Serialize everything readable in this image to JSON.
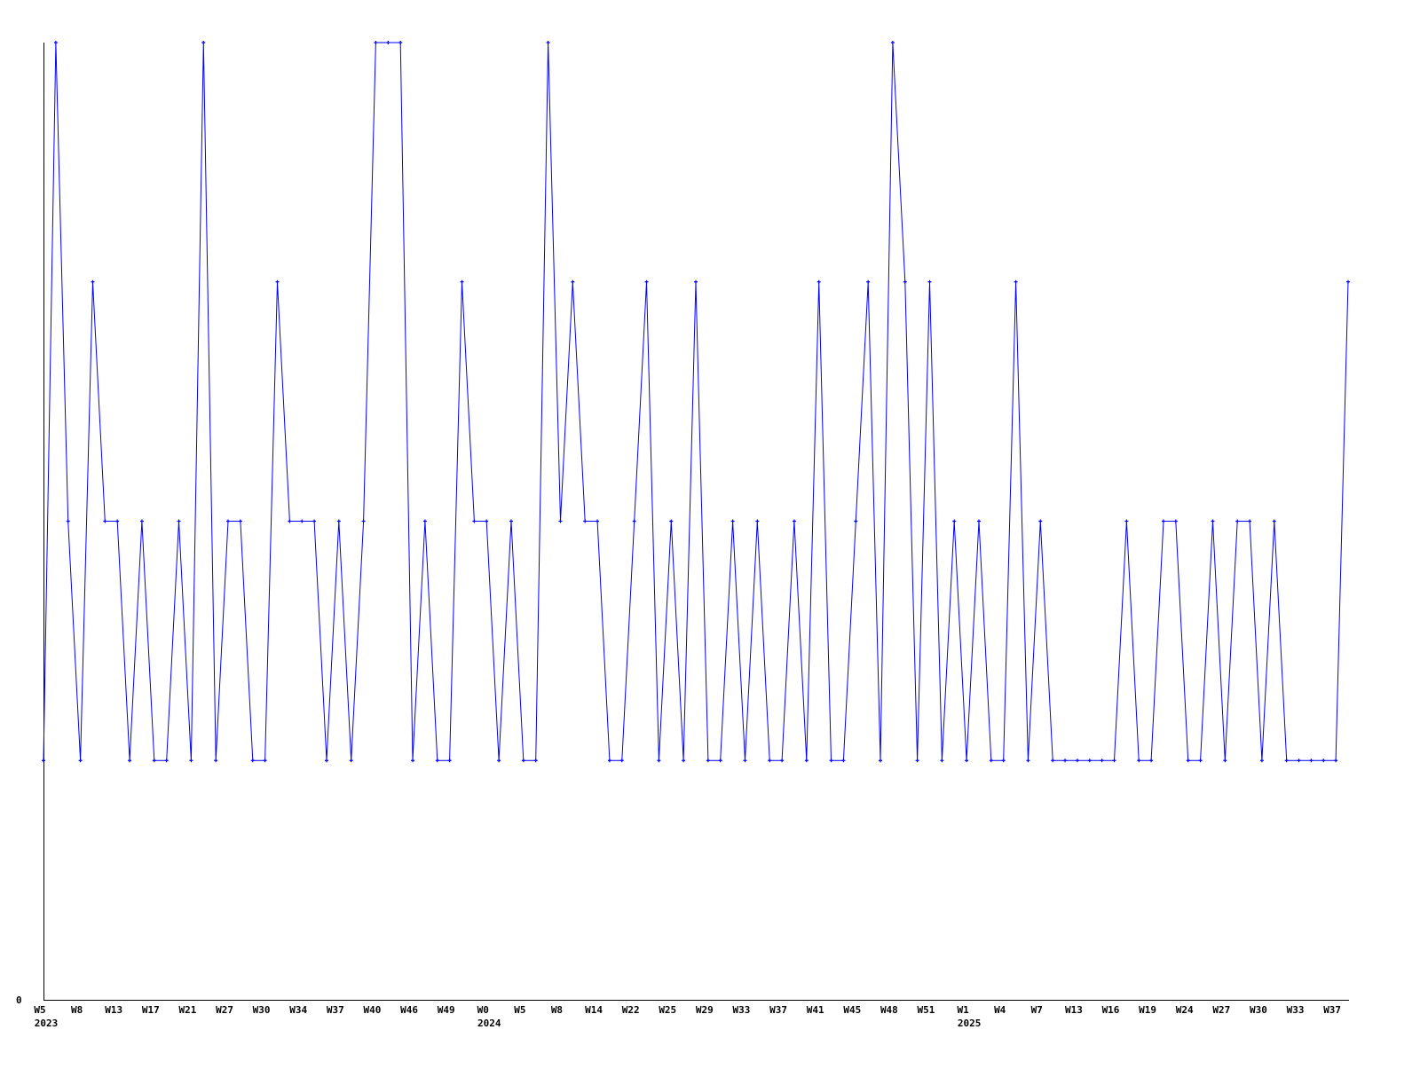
{
  "chart_data": {
    "type": "line",
    "title": "",
    "xlabel": "",
    "ylabel": "",
    "ylim": [
      0,
      4
    ],
    "y_ticks": [
      "0"
    ],
    "grid": false,
    "line_color": "#0000ff",
    "axis_color": "#000000",
    "x_tick_labels": [
      "W5",
      "W8",
      "W13",
      "W17",
      "W21",
      "W27",
      "W30",
      "W34",
      "W37",
      "W40",
      "W46",
      "W49",
      "W0",
      "W5",
      "W8",
      "W14",
      "W22",
      "W25",
      "W29",
      "W33",
      "W37",
      "W41",
      "W45",
      "W48",
      "W51",
      "W1",
      "W4",
      "W7",
      "W13",
      "W16",
      "W19",
      "W24",
      "W27",
      "W30",
      "W33",
      "W37"
    ],
    "x_tick_every": 3,
    "year_labels": [
      {
        "label": "2023",
        "index": 0
      },
      {
        "label": "2024",
        "index": 36
      },
      {
        "label": "2025",
        "index": 75
      }
    ],
    "values": [
      1,
      4,
      2,
      1,
      3,
      2,
      2,
      1,
      2,
      1,
      1,
      2,
      1,
      4,
      1,
      2,
      2,
      1,
      1,
      3,
      2,
      2,
      2,
      1,
      2,
      1,
      2,
      4,
      4,
      4,
      1,
      2,
      1,
      1,
      3,
      2,
      2,
      1,
      2,
      1,
      1,
      4,
      2,
      3,
      2,
      2,
      1,
      1,
      2,
      3,
      1,
      2,
      1,
      3,
      1,
      1,
      2,
      1,
      2,
      1,
      1,
      2,
      1,
      3,
      1,
      1,
      2,
      3,
      1,
      4,
      3,
      1,
      3,
      1,
      2,
      1,
      2,
      1,
      1,
      3,
      1,
      2,
      1,
      1,
      1,
      1,
      1,
      1,
      2,
      1,
      1,
      2,
      2,
      1,
      1,
      2,
      1,
      2,
      2,
      1,
      2,
      1,
      1,
      1,
      1,
      1,
      3
    ]
  }
}
